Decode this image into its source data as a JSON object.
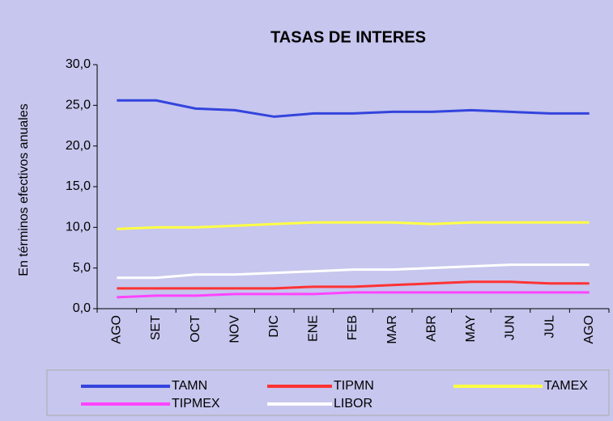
{
  "chart_data": {
    "type": "line",
    "title": "TASAS DE INTERES",
    "y_label": "En términos efectivos anuales",
    "categories": [
      "AGO",
      "SET",
      "OCT",
      "NOV",
      "DIC",
      "ENE",
      "FEB",
      "MAR",
      "ABR",
      "MAY",
      "JUN",
      "JUL",
      "AGO"
    ],
    "series": [
      {
        "name": "TAMN",
        "color": "#3344dd",
        "values": [
          25.6,
          25.6,
          24.6,
          24.4,
          23.6,
          24.0,
          24.0,
          24.2,
          24.2,
          24.4,
          24.2,
          24.0,
          24.0
        ]
      },
      {
        "name": "TIPMN",
        "color": "#ff3333",
        "values": [
          2.5,
          2.5,
          2.5,
          2.5,
          2.5,
          2.7,
          2.7,
          2.9,
          3.1,
          3.3,
          3.3,
          3.1,
          3.1
        ]
      },
      {
        "name": "TAMEX",
        "color": "#ffff44",
        "values": [
          9.8,
          10.0,
          10.0,
          10.2,
          10.4,
          10.6,
          10.6,
          10.6,
          10.4,
          10.6,
          10.6,
          10.6,
          10.6
        ]
      },
      {
        "name": "TIPMEX",
        "color": "#ff44ff",
        "values": [
          1.4,
          1.6,
          1.6,
          1.8,
          1.8,
          1.8,
          2.0,
          2.0,
          2.0,
          2.0,
          2.0,
          2.0,
          2.0
        ]
      },
      {
        "name": "LIBOR",
        "color": "#ffffff",
        "values": [
          3.8,
          3.8,
          4.2,
          4.2,
          4.4,
          4.6,
          4.8,
          4.8,
          5.0,
          5.2,
          5.4,
          5.4,
          5.4
        ]
      }
    ],
    "ylim": [
      0,
      30
    ],
    "yticks": [
      {
        "value": 0,
        "label": "0,0"
      },
      {
        "value": 5,
        "label": "5,0"
      },
      {
        "value": 10,
        "label": "10,0"
      },
      {
        "value": 15,
        "label": "15,0"
      },
      {
        "value": 20,
        "label": "20,0"
      },
      {
        "value": 25,
        "label": "25,0"
      },
      {
        "value": 30,
        "label": "30,0"
      }
    ],
    "legend": "bottom"
  }
}
